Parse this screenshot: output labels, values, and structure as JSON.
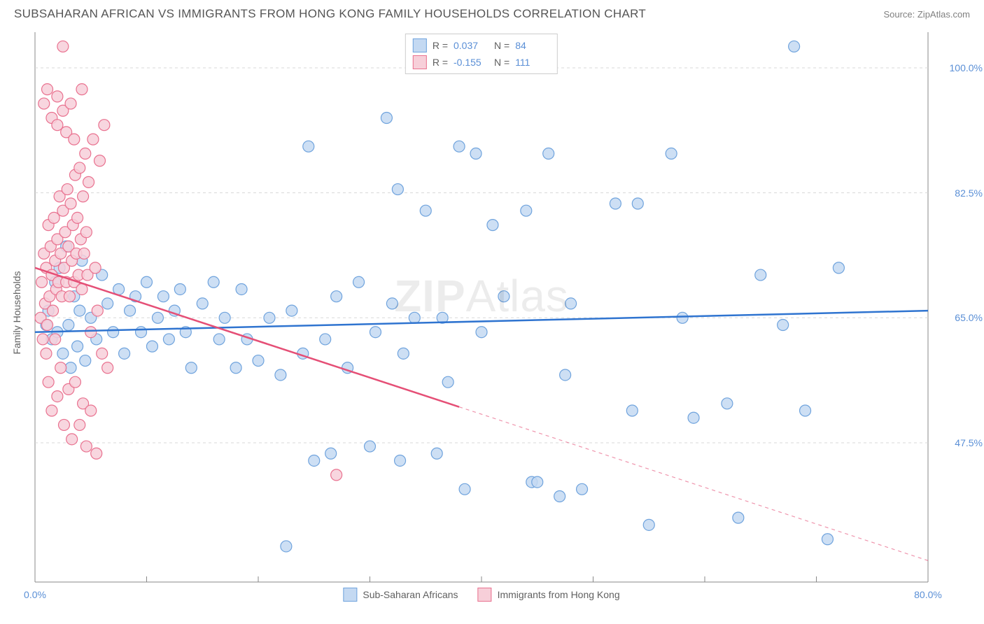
{
  "header": {
    "title": "SUBSAHARAN AFRICAN VS IMMIGRANTS FROM HONG KONG FAMILY HOUSEHOLDS CORRELATION CHART",
    "source": "Source: ZipAtlas.com"
  },
  "watermark_left": "ZIP",
  "watermark_right": "Atlas",
  "chart": {
    "type": "scatter",
    "ylabel": "Family Households",
    "background": "#ffffff",
    "grid_color": "#d8d8d8",
    "grid_dash": "4,4",
    "axis_color": "#888888",
    "tick_color": "#888888",
    "label_color": "#5a8fd6",
    "xlim": [
      0,
      80
    ],
    "ylim": [
      28,
      105
    ],
    "yticks": [
      47.5,
      65.0,
      82.5,
      100.0
    ],
    "ytick_labels": [
      "47.5%",
      "65.0%",
      "82.5%",
      "100.0%"
    ],
    "xticks": [
      0,
      10,
      20,
      30,
      40,
      50,
      60,
      70,
      80
    ],
    "xtick_labels_shown": {
      "0": "0.0%",
      "80": "80.0%"
    },
    "series": [
      {
        "name": "Sub-Saharan Africans",
        "marker_fill": "#c4d9f2",
        "marker_stroke": "#6fa3dd",
        "marker_r": 8,
        "line_color": "#2f74d0",
        "line_width": 2.5,
        "R": "0.037",
        "N": "84",
        "trend": {
          "x1": 0,
          "y1": 63,
          "x2": 80,
          "y2": 66,
          "solid_until": 80
        },
        "points": [
          [
            1,
            64
          ],
          [
            1.2,
            66
          ],
          [
            1.5,
            62
          ],
          [
            1.8,
            70
          ],
          [
            2,
            63
          ],
          [
            2.2,
            72
          ],
          [
            2.5,
            60
          ],
          [
            2.8,
            75
          ],
          [
            3,
            64
          ],
          [
            3.2,
            58
          ],
          [
            3.5,
            68
          ],
          [
            3.8,
            61
          ],
          [
            4,
            66
          ],
          [
            4.2,
            73
          ],
          [
            4.5,
            59
          ],
          [
            5,
            65
          ],
          [
            5.5,
            62
          ],
          [
            6,
            71
          ],
          [
            6.5,
            67
          ],
          [
            7,
            63
          ],
          [
            7.5,
            69
          ],
          [
            8,
            60
          ],
          [
            8.5,
            66
          ],
          [
            9,
            68
          ],
          [
            9.5,
            63
          ],
          [
            10,
            70
          ],
          [
            10.5,
            61
          ],
          [
            11,
            65
          ],
          [
            11.5,
            68
          ],
          [
            12,
            62
          ],
          [
            12.5,
            66
          ],
          [
            13,
            69
          ],
          [
            13.5,
            63
          ],
          [
            14,
            58
          ],
          [
            15,
            67
          ],
          [
            16,
            70
          ],
          [
            16.5,
            62
          ],
          [
            17,
            65
          ],
          [
            18,
            58
          ],
          [
            18.5,
            69
          ],
          [
            19,
            62
          ],
          [
            20,
            59
          ],
          [
            21,
            65
          ],
          [
            22,
            57
          ],
          [
            22.5,
            33
          ],
          [
            23,
            66
          ],
          [
            24,
            60
          ],
          [
            24.5,
            89
          ],
          [
            25,
            45
          ],
          [
            26,
            62
          ],
          [
            26.5,
            46
          ],
          [
            27,
            68
          ],
          [
            28,
            58
          ],
          [
            29,
            70
          ],
          [
            30,
            47
          ],
          [
            30.5,
            63
          ],
          [
            31.5,
            93
          ],
          [
            32,
            67
          ],
          [
            32.5,
            83
          ],
          [
            32.7,
            45
          ],
          [
            33,
            60
          ],
          [
            34,
            65
          ],
          [
            35,
            80
          ],
          [
            36,
            46
          ],
          [
            36.5,
            65
          ],
          [
            37,
            56
          ],
          [
            38,
            89
          ],
          [
            38.5,
            41
          ],
          [
            39.5,
            88
          ],
          [
            40,
            63
          ],
          [
            41,
            78
          ],
          [
            42,
            68
          ],
          [
            44,
            80
          ],
          [
            44.5,
            42
          ],
          [
            45,
            42
          ],
          [
            46,
            88
          ],
          [
            47,
            40
          ],
          [
            47.5,
            57
          ],
          [
            48,
            67
          ],
          [
            49,
            41
          ],
          [
            52,
            81
          ],
          [
            53.5,
            52
          ],
          [
            54,
            81
          ],
          [
            55,
            36
          ],
          [
            57,
            88
          ],
          [
            58,
            65
          ],
          [
            59,
            51
          ],
          [
            62,
            53
          ],
          [
            63,
            37
          ],
          [
            65,
            71
          ],
          [
            67,
            64
          ],
          [
            68,
            103
          ],
          [
            69,
            52
          ],
          [
            71,
            34
          ],
          [
            72,
            72
          ]
        ]
      },
      {
        "name": "Immigrants from Hong Kong",
        "marker_fill": "#f7cfd9",
        "marker_stroke": "#e9718f",
        "marker_r": 8,
        "line_color": "#e54f76",
        "line_width": 2.5,
        "R": "-0.155",
        "N": "111",
        "trend": {
          "x1": 0,
          "y1": 72,
          "x2": 80,
          "y2": 31,
          "solid_until": 38
        },
        "points": [
          [
            0.5,
            65
          ],
          [
            0.6,
            70
          ],
          [
            0.7,
            62
          ],
          [
            0.8,
            74
          ],
          [
            0.9,
            67
          ],
          [
            1,
            72
          ],
          [
            1.1,
            64
          ],
          [
            1.2,
            78
          ],
          [
            1.3,
            68
          ],
          [
            1.4,
            75
          ],
          [
            1.5,
            71
          ],
          [
            1.6,
            66
          ],
          [
            1.7,
            79
          ],
          [
            1.8,
            73
          ],
          [
            1.9,
            69
          ],
          [
            2,
            76
          ],
          [
            2.1,
            70
          ],
          [
            2.2,
            82
          ],
          [
            2.3,
            74
          ],
          [
            2.4,
            68
          ],
          [
            2.5,
            80
          ],
          [
            2.6,
            72
          ],
          [
            2.7,
            77
          ],
          [
            2.8,
            70
          ],
          [
            2.9,
            83
          ],
          [
            3,
            75
          ],
          [
            3.1,
            68
          ],
          [
            3.2,
            81
          ],
          [
            3.3,
            73
          ],
          [
            3.4,
            78
          ],
          [
            3.5,
            70
          ],
          [
            3.6,
            85
          ],
          [
            3.7,
            74
          ],
          [
            3.8,
            79
          ],
          [
            3.9,
            71
          ],
          [
            4,
            86
          ],
          [
            4.1,
            76
          ],
          [
            4.2,
            69
          ],
          [
            4.3,
            82
          ],
          [
            4.4,
            74
          ],
          [
            4.5,
            88
          ],
          [
            4.6,
            77
          ],
          [
            4.7,
            71
          ],
          [
            4.8,
            84
          ],
          [
            5,
            63
          ],
          [
            5.2,
            90
          ],
          [
            5.4,
            72
          ],
          [
            5.6,
            66
          ],
          [
            5.8,
            87
          ],
          [
            6,
            60
          ],
          [
            6.2,
            92
          ],
          [
            6.5,
            58
          ],
          [
            1,
            60
          ],
          [
            1.2,
            56
          ],
          [
            1.5,
            52
          ],
          [
            1.8,
            62
          ],
          [
            2,
            54
          ],
          [
            2.3,
            58
          ],
          [
            2.6,
            50
          ],
          [
            3,
            55
          ],
          [
            3.3,
            48
          ],
          [
            3.6,
            56
          ],
          [
            4,
            50
          ],
          [
            4.3,
            53
          ],
          [
            4.6,
            47
          ],
          [
            5,
            52
          ],
          [
            5.5,
            46
          ],
          [
            0.8,
            95
          ],
          [
            1.1,
            97
          ],
          [
            1.5,
            93
          ],
          [
            2,
            96
          ],
          [
            2,
            92
          ],
          [
            2.5,
            94
          ],
          [
            2.8,
            91
          ],
          [
            3.2,
            95
          ],
          [
            3.5,
            90
          ],
          [
            4.2,
            97
          ],
          [
            2.5,
            103
          ],
          [
            27,
            43
          ]
        ]
      }
    ],
    "legend_bottom": [
      {
        "label": "Sub-Saharan Africans",
        "fill": "#c4d9f2",
        "stroke": "#6fa3dd"
      },
      {
        "label": "Immigrants from Hong Kong",
        "fill": "#f7cfd9",
        "stroke": "#e9718f"
      }
    ]
  }
}
